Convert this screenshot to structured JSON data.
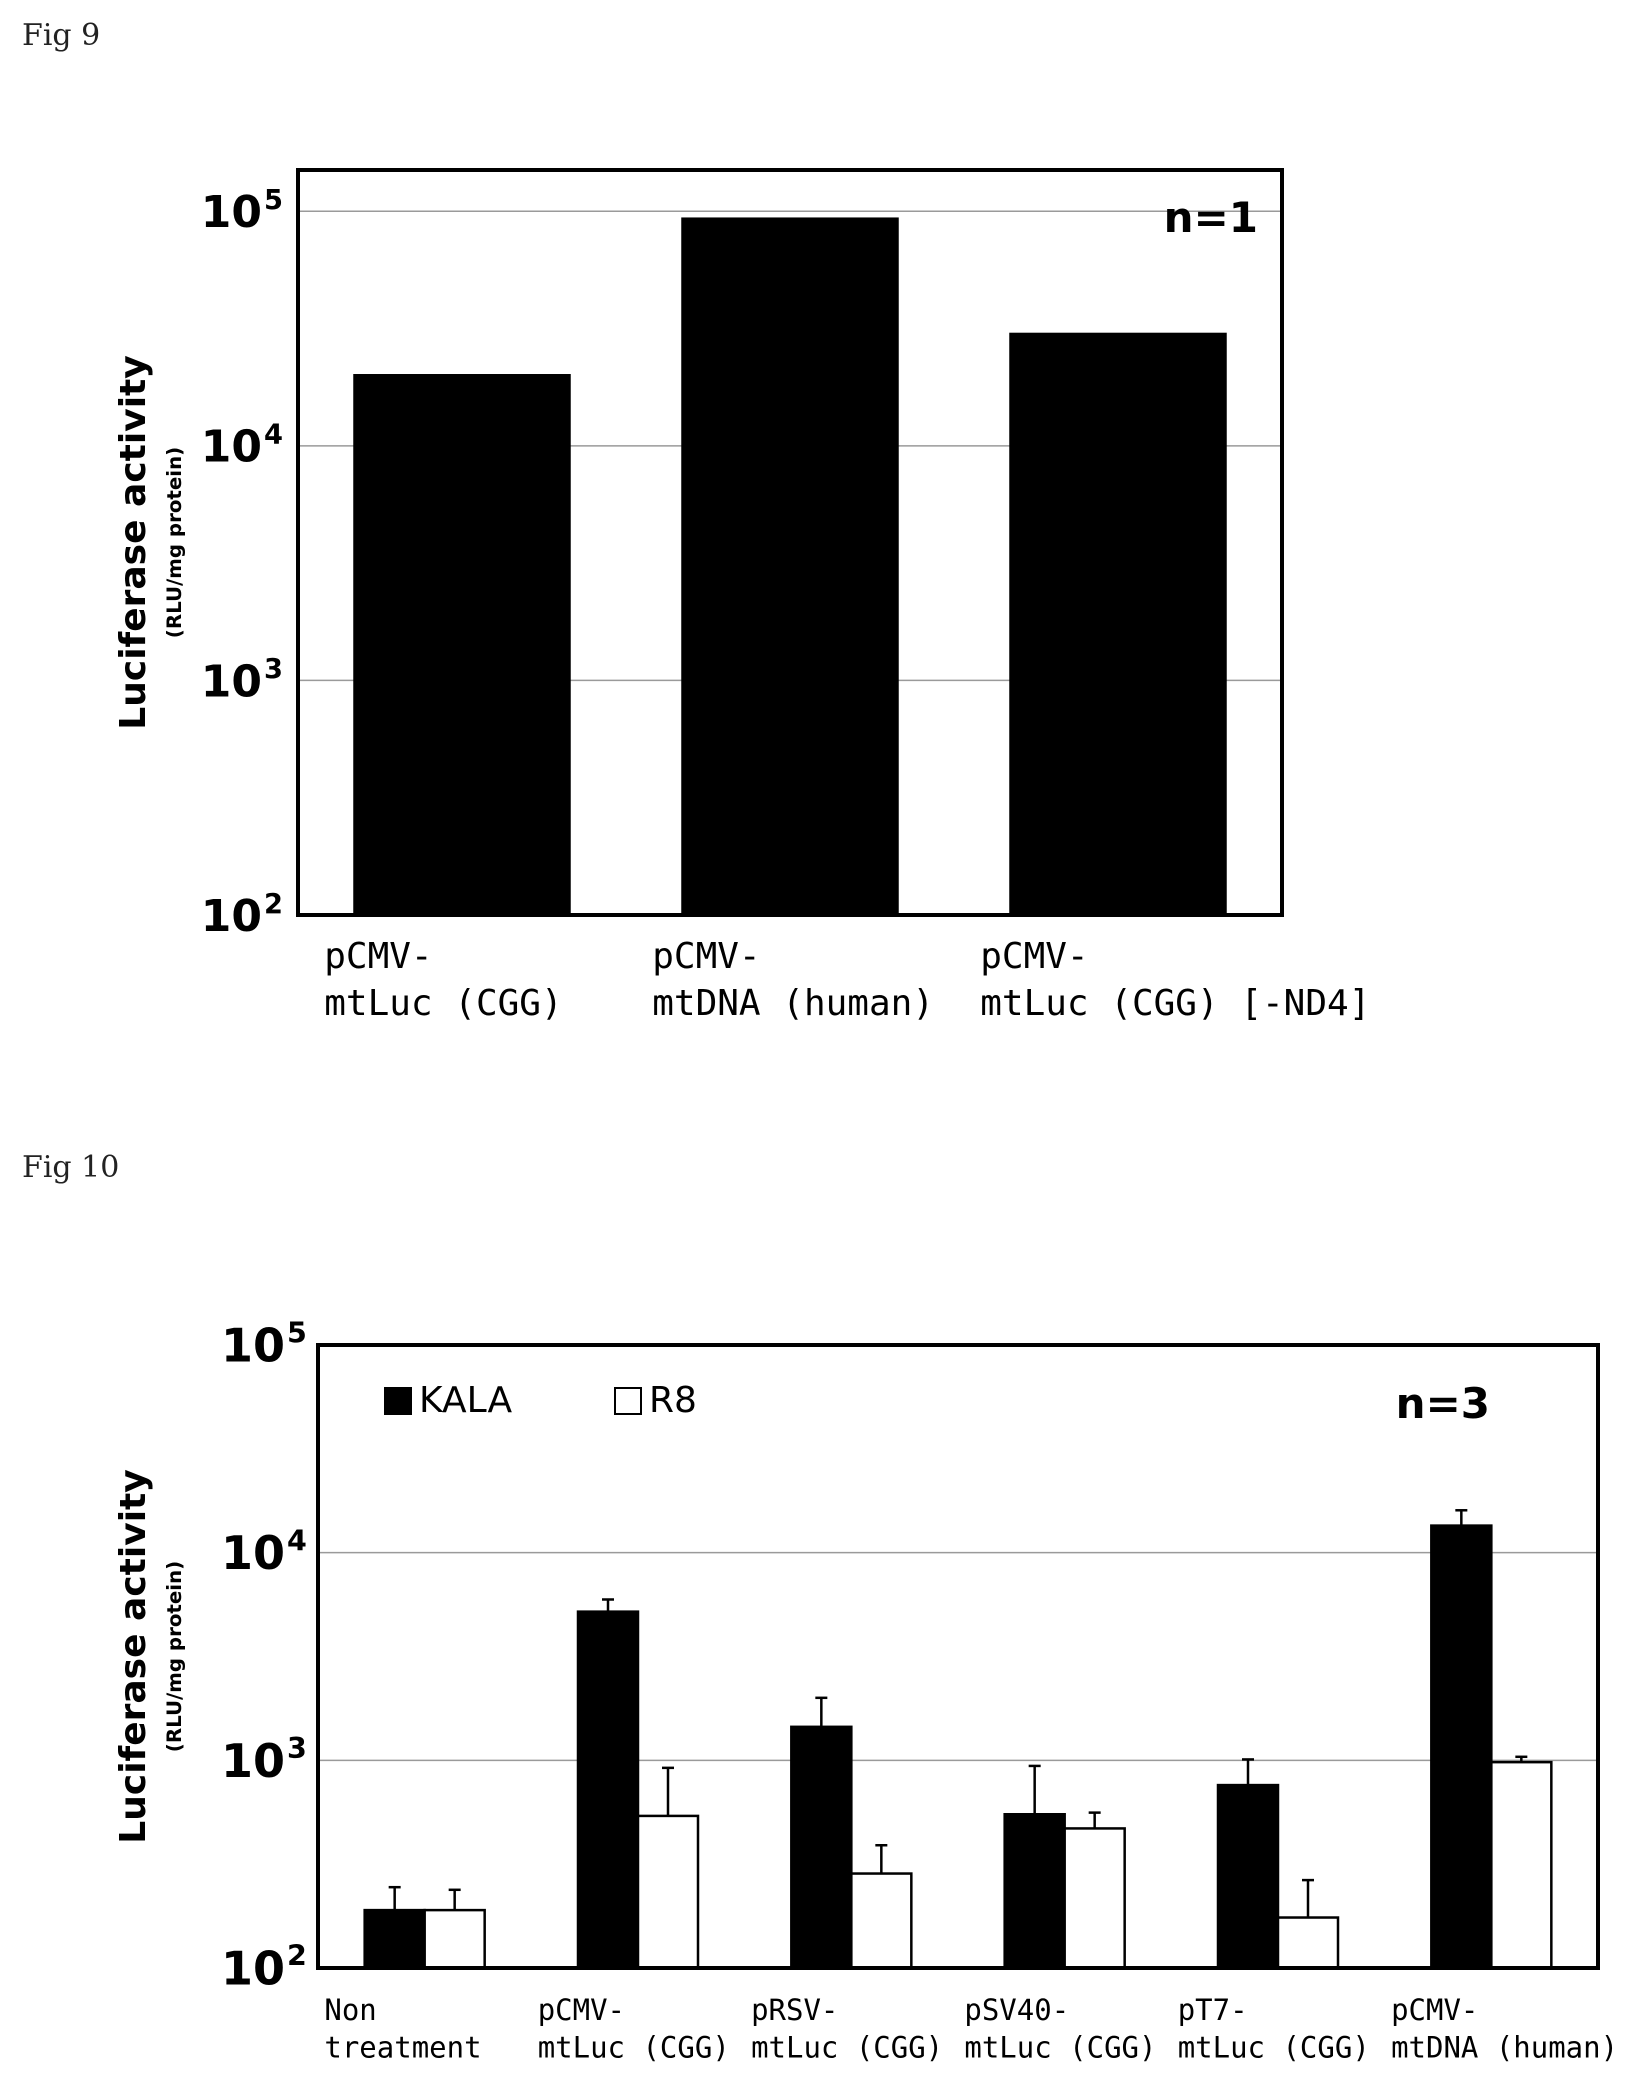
{
  "figures": {
    "fig9_label": "Fig 9",
    "fig10_label": "Fig 10"
  },
  "chart_data": [
    {
      "type": "bar",
      "scale": "log",
      "xlabel": "",
      "ylabel": "Luciferase activity",
      "ylabel_unit": "(RLU/mg protein)",
      "ylim": [
        100,
        150000
      ],
      "yticks": [
        {
          "value": 100,
          "base": "10",
          "exp": "2"
        },
        {
          "value": 1000,
          "base": "10",
          "exp": "3"
        },
        {
          "value": 10000,
          "base": "10",
          "exp": "4"
        },
        {
          "value": 100000,
          "base": "10",
          "exp": "5"
        }
      ],
      "grid": true,
      "annotation": "n=1",
      "categories": [
        [
          "pCMV-",
          "mtLuc (CGG)"
        ],
        [
          "pCMV-",
          "mtDNA (human)"
        ],
        [
          "pCMV-",
          "mtLuc (CGG) [-ND4]"
        ]
      ],
      "series": [
        {
          "values": [
            20000,
            93000,
            30000
          ],
          "color": "#000000"
        }
      ]
    },
    {
      "type": "bar",
      "scale": "log",
      "xlabel": "",
      "ylabel": "Luciferase activity",
      "ylabel_unit": "(RLU/mg protein)",
      "ylim": [
        100,
        100000
      ],
      "yticks": [
        {
          "value": 100,
          "base": "10",
          "exp": "2"
        },
        {
          "value": 1000,
          "base": "10",
          "exp": "3"
        },
        {
          "value": 10000,
          "base": "10",
          "exp": "4"
        },
        {
          "value": 100000,
          "base": "10",
          "exp": "5"
        }
      ],
      "grid": true,
      "annotation": "n=3",
      "legend_position": "top-left",
      "categories": [
        [
          "Non",
          "treatment"
        ],
        [
          "pCMV-",
          "mtLuc (CGG)"
        ],
        [
          "pRSV-",
          "mtLuc (CGG)"
        ],
        [
          "pSV40-",
          "mtLuc (CGG)"
        ],
        [
          "pT7-",
          "mtLuc (CGG)"
        ],
        [
          "pCMV-",
          "mtDNA (human)"
        ]
      ],
      "series": [
        {
          "name": "KALA",
          "color": "#000000",
          "values": [
            190,
            5200,
            1450,
            550,
            760,
            13500
          ],
          "error": [
            245,
            5950,
            2000,
            940,
            1010,
            16000
          ]
        },
        {
          "name": "R8",
          "color": "#ffffff",
          "values": [
            190,
            540,
            285,
            470,
            175,
            980
          ],
          "error": [
            238,
            920,
            390,
            560,
            265,
            1040
          ]
        }
      ]
    }
  ]
}
